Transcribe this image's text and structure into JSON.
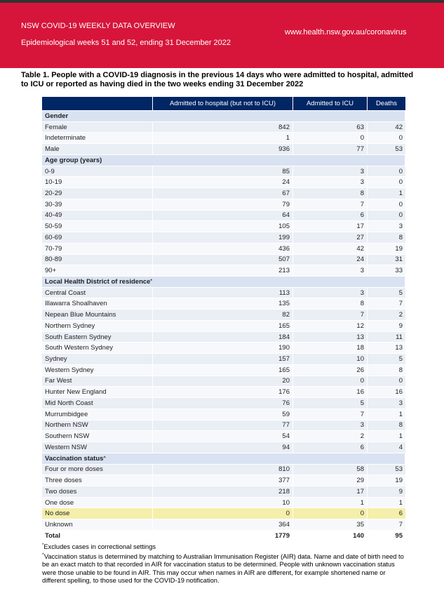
{
  "header": {
    "title": "NSW COVID-19 WEEKLY DATA OVERVIEW",
    "subtitle": "Epidemiological weeks 51 and 52, ending 31 December 2022",
    "url": "www.health.nsw.gov.au/coronavirus"
  },
  "table": {
    "caption": "Table 1. People with a COVID-19 diagnosis in the previous 14 days who were admitted to hospital, admitted to ICU or reported as having died in the two weeks ending 31 December 2022",
    "columns": [
      "Admitted to hospital (but not to ICU)",
      "Admitted to ICU",
      "Deaths"
    ],
    "sections": [
      {
        "title": "Gender",
        "rows": [
          [
            "Female",
            842,
            63,
            42
          ],
          [
            "Indeterminate",
            1,
            0,
            0
          ],
          [
            "Male",
            936,
            77,
            53
          ]
        ]
      },
      {
        "title": "Age group (years)",
        "rows": [
          [
            "0-9",
            85,
            3,
            0
          ],
          [
            "10-19",
            24,
            3,
            0
          ],
          [
            "20-29",
            67,
            8,
            1
          ],
          [
            "30-39",
            79,
            7,
            0
          ],
          [
            "40-49",
            64,
            6,
            0
          ],
          [
            "50-59",
            105,
            17,
            3
          ],
          [
            "60-69",
            199,
            27,
            8
          ],
          [
            "70-79",
            436,
            42,
            19
          ],
          [
            "80-89",
            507,
            24,
            31
          ],
          [
            "90+",
            213,
            3,
            33
          ]
        ]
      },
      {
        "title": "Local Health District of residence",
        "note": "*",
        "rows": [
          [
            "Central Coast",
            113,
            3,
            5
          ],
          [
            "Illawarra Shoalhaven",
            135,
            8,
            7
          ],
          [
            "Nepean Blue Mountains",
            82,
            7,
            2
          ],
          [
            "Northern Sydney",
            165,
            12,
            9
          ],
          [
            "South Eastern Sydney",
            184,
            13,
            11
          ],
          [
            "South Western Sydney",
            190,
            18,
            13
          ],
          [
            "Sydney",
            157,
            10,
            5
          ],
          [
            "Western Sydney",
            165,
            26,
            8
          ],
          [
            "Far West",
            20,
            0,
            0
          ],
          [
            "Hunter New England",
            176,
            16,
            16
          ],
          [
            "Mid North Coast",
            76,
            5,
            3
          ],
          [
            "Murrumbidgee",
            59,
            7,
            1
          ],
          [
            "Northern NSW",
            77,
            3,
            8
          ],
          [
            "Southern NSW",
            54,
            2,
            1
          ],
          [
            "Western NSW",
            94,
            6,
            4
          ]
        ]
      },
      {
        "title": "Vaccination status",
        "note": "^",
        "highlight_rows": [
          4
        ],
        "rows": [
          [
            "Four or more doses",
            810,
            58,
            53
          ],
          [
            "Three doses",
            377,
            29,
            19
          ],
          [
            "Two doses",
            218,
            17,
            9
          ],
          [
            "One dose",
            10,
            1,
            1
          ],
          [
            "No dose",
            0,
            0,
            6
          ],
          [
            "Unknown",
            364,
            35,
            7
          ]
        ]
      }
    ],
    "total": [
      "Total",
      1779,
      140,
      95
    ]
  },
  "footnotes": [
    {
      "mark": "*",
      "text": "Excludes cases in correctional settings"
    },
    {
      "mark": "^",
      "text": "Vaccination status is determined by matching to Australian Immunisation Register (AIR) data. Name and date of birth need to be an exact match to that recorded in AIR for vaccination status to be determined. People with unknown vaccination status were those unable to be found in AIR. This may occur when names in AIR are different, for example shortened name or different spelling, to those used for the COVID-19 notification."
    }
  ]
}
